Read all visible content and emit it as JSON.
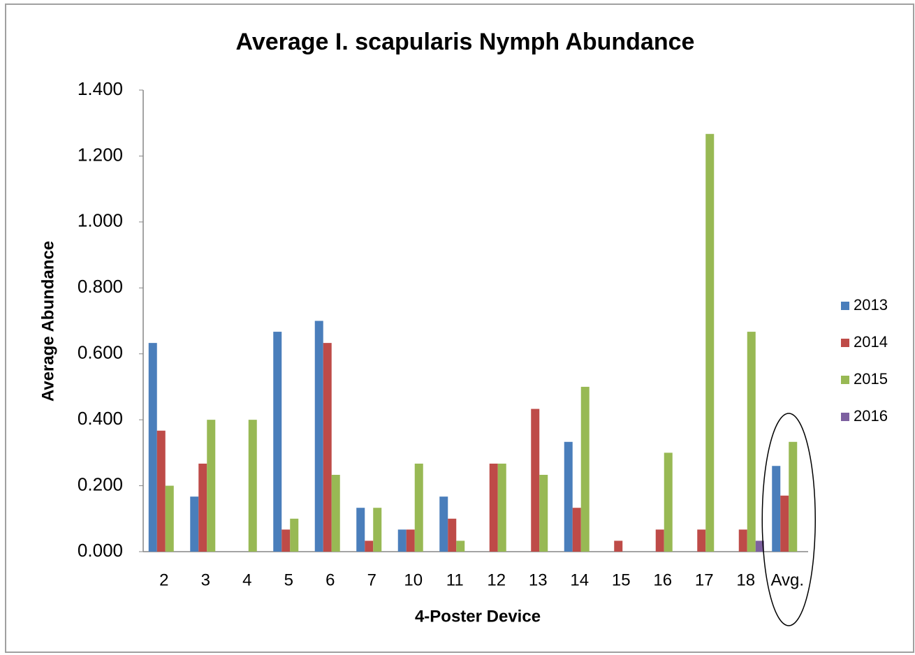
{
  "chart_data": {
    "type": "bar",
    "title": "Average I. scapularis Nymph Abundance",
    "x_label": "4-Poster Device",
    "y_label": "Average Abundance",
    "categories": [
      "2",
      "3",
      "4",
      "5",
      "6",
      "7",
      "10",
      "11",
      "12",
      "13",
      "14",
      "15",
      "16",
      "17",
      "18",
      "Avg."
    ],
    "series": [
      {
        "name": "2013",
        "color": "#4a7ebb",
        "values": [
          0.633,
          0.167,
          0,
          0.667,
          0.7,
          0.133,
          0.067,
          0.167,
          0,
          0,
          0.333,
          0,
          0,
          0,
          0,
          0.26
        ]
      },
      {
        "name": "2014",
        "color": "#be4b48",
        "values": [
          0.367,
          0.267,
          0,
          0.067,
          0.633,
          0.033,
          0.067,
          0.1,
          0.267,
          0.433,
          0.133,
          0.033,
          0.067,
          0.067,
          0.067,
          0.17
        ]
      },
      {
        "name": "2015",
        "color": "#98b954",
        "values": [
          0.2,
          0.4,
          0.4,
          0.1,
          0.233,
          0.133,
          0.267,
          0.033,
          0.267,
          0.233,
          0.5,
          0,
          0.3,
          1.267,
          0.667,
          0.333
        ]
      },
      {
        "name": "2016",
        "color": "#7d60a0",
        "values": [
          0,
          0,
          0,
          0,
          0,
          0,
          0,
          0,
          0,
          0,
          0,
          0,
          0,
          0,
          0.033,
          0
        ]
      }
    ],
    "ylim": [
      0,
      1.4
    ],
    "yticks": [
      {
        "value": 0,
        "label": "0.000"
      },
      {
        "value": 0.2,
        "label": "0.200"
      },
      {
        "value": 0.4,
        "label": "0.400"
      },
      {
        "value": 0.6,
        "label": "0.600"
      },
      {
        "value": 0.8,
        "label": "0.800"
      },
      {
        "value": 1.0,
        "label": "1.000"
      },
      {
        "value": 1.2,
        "label": "1.200"
      },
      {
        "value": 1.4,
        "label": "1.400"
      }
    ],
    "grid": false,
    "legend": "right"
  }
}
